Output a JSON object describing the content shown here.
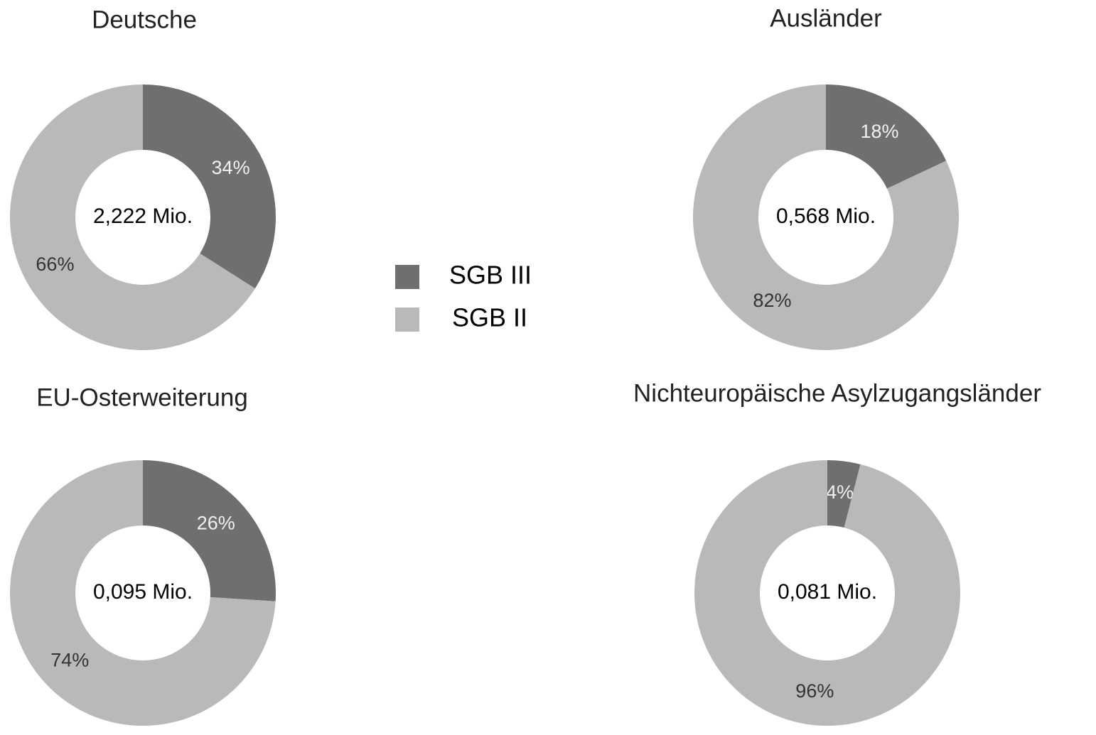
{
  "chart_data": [
    {
      "type": "pie",
      "title": "Deutsche",
      "center_label": "2,222 Mio.",
      "values": [
        34,
        66
      ],
      "value_labels": [
        "34%",
        "66%"
      ]
    },
    {
      "type": "pie",
      "title": "Ausländer",
      "center_label": "0,568 Mio.",
      "values": [
        18,
        82
      ],
      "value_labels": [
        "18%",
        "82%"
      ]
    },
    {
      "type": "pie",
      "title": "EU-Osterweiterung",
      "center_label": "0,095 Mio.",
      "values": [
        26,
        74
      ],
      "value_labels": [
        "26%",
        "74%"
      ]
    },
    {
      "type": "pie",
      "title": "Nichteuropäische Asylzugangsländer",
      "center_label": "0,081 Mio.",
      "values": [
        4,
        96
      ],
      "value_labels": [
        "4%",
        "96%"
      ]
    }
  ],
  "legend": {
    "labels": [
      "SGB III",
      "SGB II"
    ],
    "colors": [
      "#6f6f6f",
      "#b9b9b9"
    ]
  }
}
